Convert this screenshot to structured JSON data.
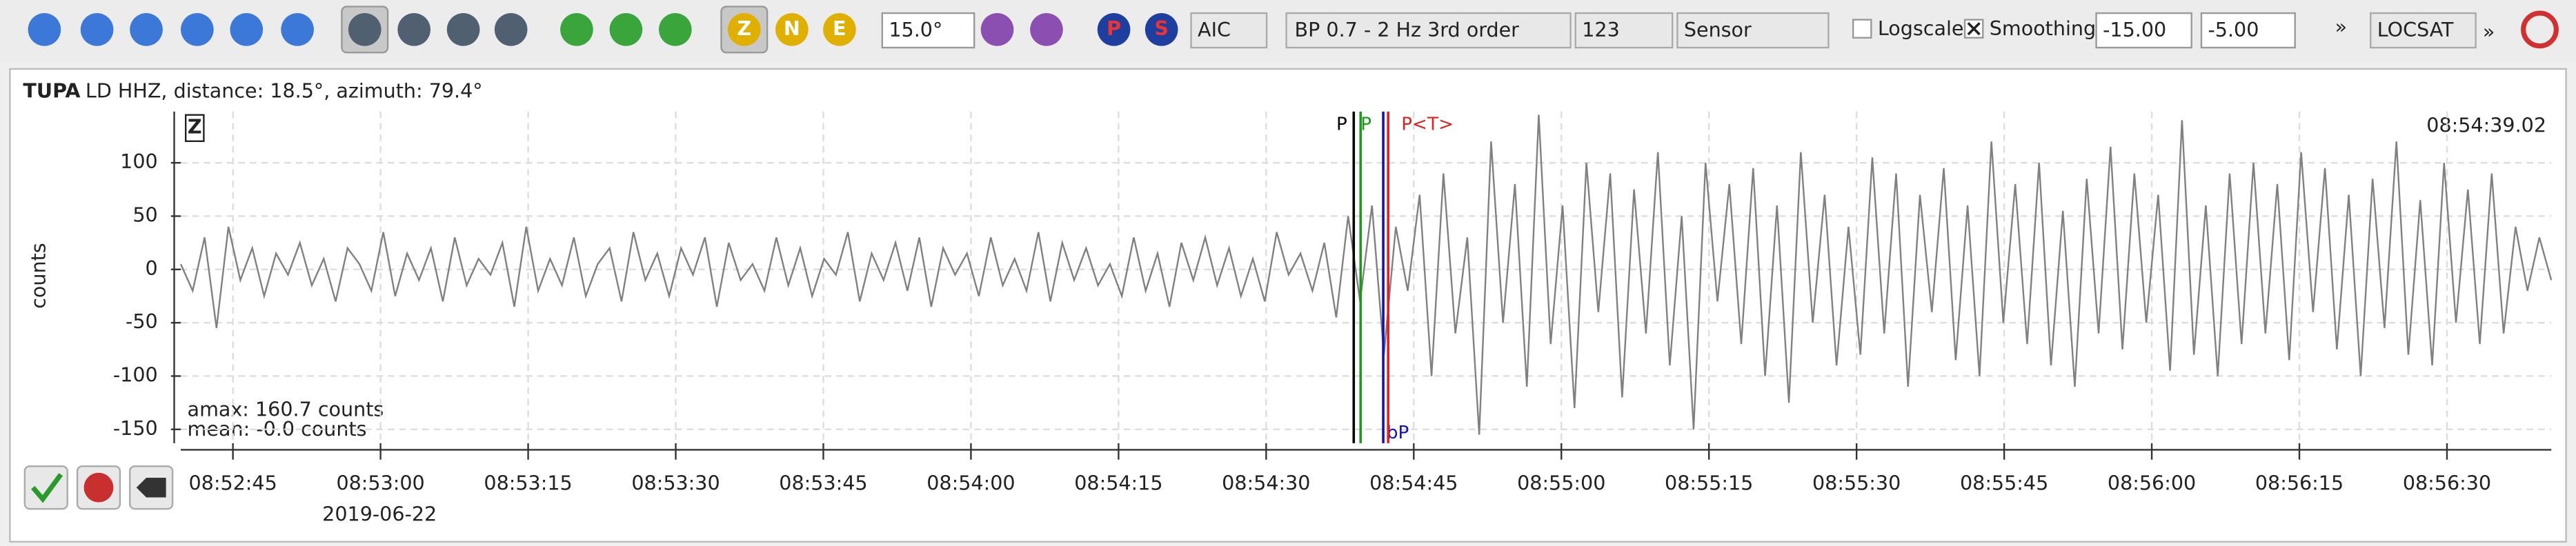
{
  "toolbar": {
    "components": [
      "Z",
      "N",
      "E"
    ],
    "angle": "15.0°",
    "method": "AIC",
    "filter": "BP 0.7 - 2 Hz  3rd order",
    "channels": "123",
    "unit": "Sensor",
    "logscale": "Logscale",
    "smoothing": "Smoothing",
    "min": "-15.00",
    "max": "-5.00",
    "more": "»",
    "locator": "LOCSAT",
    "more2": "»",
    "phases": [
      "P",
      "S"
    ]
  },
  "trace": {
    "station": "TUPA",
    "info": "LD  HHZ, distance: 18.5°, azimuth: 79.4°",
    "component": "Z",
    "time": "08:54:39.02",
    "ylabel": "counts",
    "amax": "amax: 160.7 counts",
    "mean": "mean: -0.0 counts",
    "date": "2019-06-22",
    "ylim": [
      -163,
      148
    ],
    "yticks": [
      100,
      50,
      0,
      -50,
      -100,
      -150
    ],
    "xlim": [
      31959.7,
      32200.6
    ],
    "xticks": [
      {
        "value": 31965,
        "label": "08:52:45"
      },
      {
        "value": 31980,
        "label": "08:53:00"
      },
      {
        "value": 31995,
        "label": "08:53:15"
      },
      {
        "value": 32010,
        "label": "08:53:30"
      },
      {
        "value": 32025,
        "label": "08:53:45"
      },
      {
        "value": 32040,
        "label": "08:54:00"
      },
      {
        "value": 32055,
        "label": "08:54:15"
      },
      {
        "value": 32070,
        "label": "08:54:30"
      },
      {
        "value": 32085,
        "label": "08:54:45"
      },
      {
        "value": 32100,
        "label": "08:55:00"
      },
      {
        "value": 32115,
        "label": "08:55:15"
      },
      {
        "value": 32130,
        "label": "08:55:30"
      },
      {
        "value": 32145,
        "label": "08:55:45"
      },
      {
        "value": 32160,
        "label": "08:56:00"
      },
      {
        "value": 32175,
        "label": "08:56:15"
      },
      {
        "value": 32190,
        "label": "08:56:30"
      }
    ],
    "picks": [
      {
        "label": "P",
        "color": "#000000",
        "time": 32078.9,
        "top": true
      },
      {
        "label": "P",
        "color": "#1a9a1a",
        "time": 32079.6,
        "top": true
      },
      {
        "label": "bP",
        "color": "#1010c0",
        "time": 32081.9,
        "top": false
      },
      {
        "label": "P<T>",
        "color": "#e02020",
        "time": 32082.4,
        "top": true
      }
    ],
    "waveform": [
      5,
      -20,
      30,
      -55,
      40,
      -10,
      20,
      -25,
      15,
      -5,
      25,
      -15,
      10,
      -30,
      20,
      5,
      -20,
      35,
      -25,
      15,
      -10,
      20,
      -30,
      30,
      -15,
      10,
      -5,
      25,
      -35,
      40,
      -20,
      10,
      -15,
      30,
      -25,
      5,
      20,
      -30,
      35,
      -10,
      15,
      -25,
      20,
      -5,
      30,
      -35,
      25,
      -10,
      5,
      -20,
      30,
      -15,
      20,
      -25,
      10,
      -5,
      35,
      -30,
      15,
      -10,
      25,
      -20,
      30,
      -35,
      20,
      -5,
      15,
      -25,
      30,
      -15,
      10,
      -20,
      35,
      -30,
      25,
      -10,
      20,
      -15,
      5,
      -25,
      30,
      -20,
      15,
      -35,
      25,
      -10,
      30,
      -15,
      20,
      -25,
      10,
      -30,
      35,
      -5,
      15,
      -20,
      25,
      -45,
      50,
      -30,
      60,
      -80,
      40,
      -20,
      70,
      -100,
      90,
      -60,
      30,
      -155,
      120,
      -50,
      80,
      -110,
      145,
      -70,
      60,
      -130,
      100,
      -40,
      90,
      -120,
      75,
      -60,
      110,
      -90,
      50,
      -150,
      100,
      -30,
      80,
      -70,
      95,
      -100,
      60,
      -125,
      110,
      -50,
      70,
      -90,
      40,
      -80,
      105,
      -60,
      90,
      -110,
      70,
      -40,
      95,
      -85,
      60,
      -100,
      120,
      -50,
      80,
      -70,
      100,
      -90,
      55,
      -110,
      85,
      -60,
      115,
      -75,
      90,
      -50,
      70,
      -95,
      140,
      -80,
      60,
      -100,
      90,
      -70,
      100,
      -60,
      80,
      -85,
      110,
      -40,
      95,
      -75,
      70,
      -100,
      85,
      -55,
      120,
      -80,
      65,
      -90,
      100,
      -50,
      75,
      -70,
      90,
      -60,
      40,
      -20,
      30,
      -10
    ]
  }
}
